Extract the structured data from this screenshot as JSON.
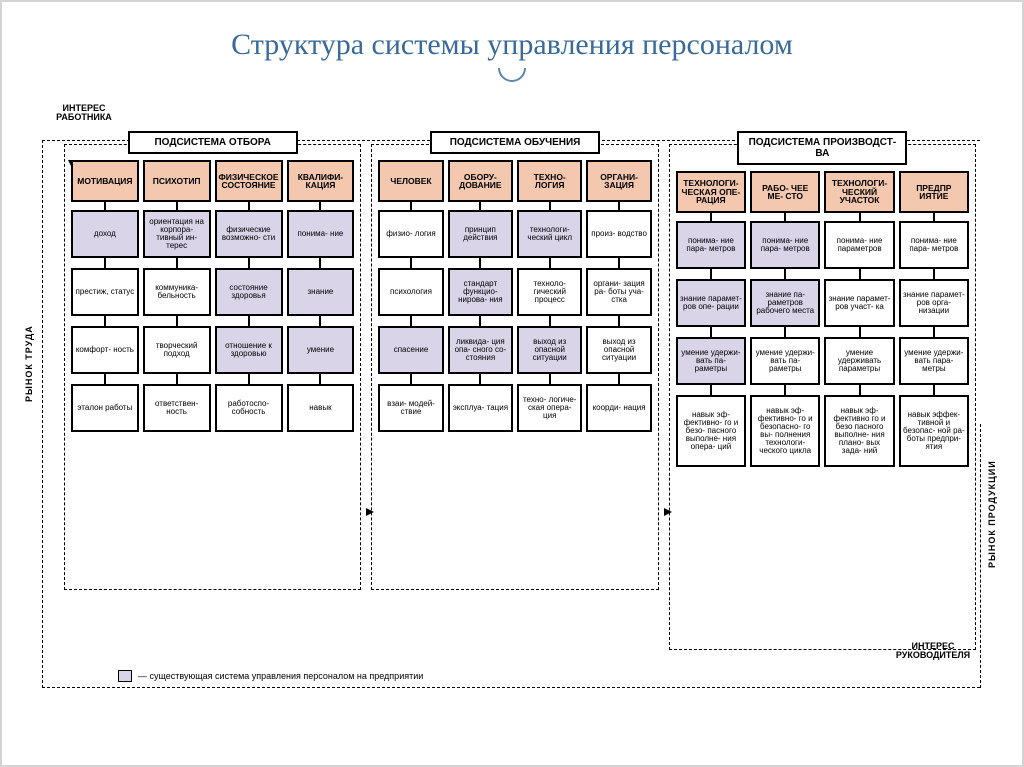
{
  "title": "Структура системы управления персоналом",
  "labels": {
    "top_left": "ИНТЕРЕС РАБОТНИКА",
    "bottom_right": "ИНТЕРЕС РУКОВОДИТЕЛЯ",
    "left_side": "РЫНОК ТРУДА",
    "right_side": "РЫНОК ПРОДУКЦИИ"
  },
  "legend": "— существующая система управления персоналом на предприятии",
  "colors": {
    "title": "#3a6a9a",
    "category_bg": "#f3c8af",
    "existing_bg": "#d9d4e8",
    "plain_bg": "#ffffff",
    "border": "#000000"
  },
  "subsystems": [
    {
      "header": "ПОДСИСТЕМА ОТБОРА",
      "columns": [
        {
          "category": "МОТИВАЦИЯ",
          "rows": [
            {
              "text": "доход",
              "shade": "gray"
            },
            {
              "text": "престиж, статус",
              "shade": "white"
            },
            {
              "text": "комфорт- ность",
              "shade": "white"
            },
            {
              "text": "эталон работы",
              "shade": "white"
            }
          ]
        },
        {
          "category": "ПСИХОТИП",
          "rows": [
            {
              "text": "ориентация на корпора- тивный ин- терес",
              "shade": "gray"
            },
            {
              "text": "коммуника- бельность",
              "shade": "white"
            },
            {
              "text": "творческий подход",
              "shade": "white"
            },
            {
              "text": "ответствен- ность",
              "shade": "white"
            }
          ]
        },
        {
          "category": "ФИЗИЧЕСКОЕ СОСТОЯНИЕ",
          "rows": [
            {
              "text": "физические возможно- сти",
              "shade": "gray"
            },
            {
              "text": "состояние здоровья",
              "shade": "gray"
            },
            {
              "text": "отношение к здоровью",
              "shade": "gray"
            },
            {
              "text": "работоспо- собность",
              "shade": "white"
            }
          ]
        },
        {
          "category": "КВАЛИФИ- КАЦИЯ",
          "rows": [
            {
              "text": "понима- ние",
              "shade": "gray"
            },
            {
              "text": "знание",
              "shade": "gray"
            },
            {
              "text": "умение",
              "shade": "gray"
            },
            {
              "text": "навык",
              "shade": "white"
            }
          ]
        }
      ]
    },
    {
      "header": "ПОДСИСТЕМА ОБУЧЕНИЯ",
      "columns": [
        {
          "category": "ЧЕЛОВЕК",
          "rows": [
            {
              "text": "физио- логия",
              "shade": "white"
            },
            {
              "text": "психология",
              "shade": "white"
            },
            {
              "text": "спасение",
              "shade": "gray"
            },
            {
              "text": "взаи- модей- ствие",
              "shade": "white"
            }
          ]
        },
        {
          "category": "ОБОРУ- ДОВАНИЕ",
          "rows": [
            {
              "text": "принцип действия",
              "shade": "gray"
            },
            {
              "text": "стандарт функцио- нирова- ния",
              "shade": "gray"
            },
            {
              "text": "ликвида- ция опа- сного со- стояния",
              "shade": "gray"
            },
            {
              "text": "эксплуа- тация",
              "shade": "white"
            }
          ]
        },
        {
          "category": "ТЕХНО- ЛОГИЯ",
          "rows": [
            {
              "text": "технологи- ческий цикл",
              "shade": "gray"
            },
            {
              "text": "техноло- гический процесс",
              "shade": "white"
            },
            {
              "text": "выход из опасной ситуации",
              "shade": "gray"
            },
            {
              "text": "техно- логиче- ская опера- ция",
              "shade": "white"
            }
          ]
        },
        {
          "category": "ОРГАНИ- ЗАЦИЯ",
          "rows": [
            {
              "text": "произ- водство",
              "shade": "white"
            },
            {
              "text": "органи- зация ра- боты уча- стка",
              "shade": "white"
            },
            {
              "text": "выход из опасной ситуации",
              "shade": "white"
            },
            {
              "text": "коорди- нация",
              "shade": "white"
            }
          ]
        }
      ]
    },
    {
      "header": "ПОДСИСТЕМА ПРОИЗВОДСТ- ВА",
      "columns": [
        {
          "category": "ТЕХНОЛОГИ- ЧЕСКАЯ ОПЕ- РАЦИЯ",
          "rows": [
            {
              "text": "понима- ние пара- метров",
              "shade": "gray"
            },
            {
              "text": "знание парамет- ров опе- рации",
              "shade": "gray"
            },
            {
              "text": "умение удержи- вать па- раметры",
              "shade": "gray"
            },
            {
              "text": "навык эф- фективно- го и безо- пасного выполне- ния опера- ций",
              "shade": "white"
            }
          ]
        },
        {
          "category": "РАБО- ЧЕЕ МЕ- СТО",
          "rows": [
            {
              "text": "понима- ние пара- метров",
              "shade": "gray"
            },
            {
              "text": "знание па- раметров рабочего места",
              "shade": "gray"
            },
            {
              "text": "умение удержи- вать па- раметры",
              "shade": "white"
            },
            {
              "text": "навык эф- фективно- го и безопасно- го вы- полнения технологи- ческого цикла",
              "shade": "white"
            }
          ]
        },
        {
          "category": "ТЕХНОЛОГИ- ЧЕСКИЙ УЧАСТОК",
          "rows": [
            {
              "text": "понима- ние параметров",
              "shade": "white"
            },
            {
              "text": "знание парамет- ров участ- ка",
              "shade": "white"
            },
            {
              "text": "умение удерживать параметры",
              "shade": "white"
            },
            {
              "text": "навык эф- фективно го и безо пасного выполне- ния плано- вых зада- ний",
              "shade": "white"
            }
          ]
        },
        {
          "category": "ПРЕДПР ИЯТИЕ",
          "rows": [
            {
              "text": "понима- ние пара- метров",
              "shade": "white"
            },
            {
              "text": "знание парамет- ров орга- низации",
              "shade": "white"
            },
            {
              "text": "умение удержи- вать пара- метры",
              "shade": "white"
            },
            {
              "text": "навык эффек- тивной и безопас- ной ра- боты предпри- ятия",
              "shade": "white"
            }
          ]
        }
      ]
    }
  ]
}
